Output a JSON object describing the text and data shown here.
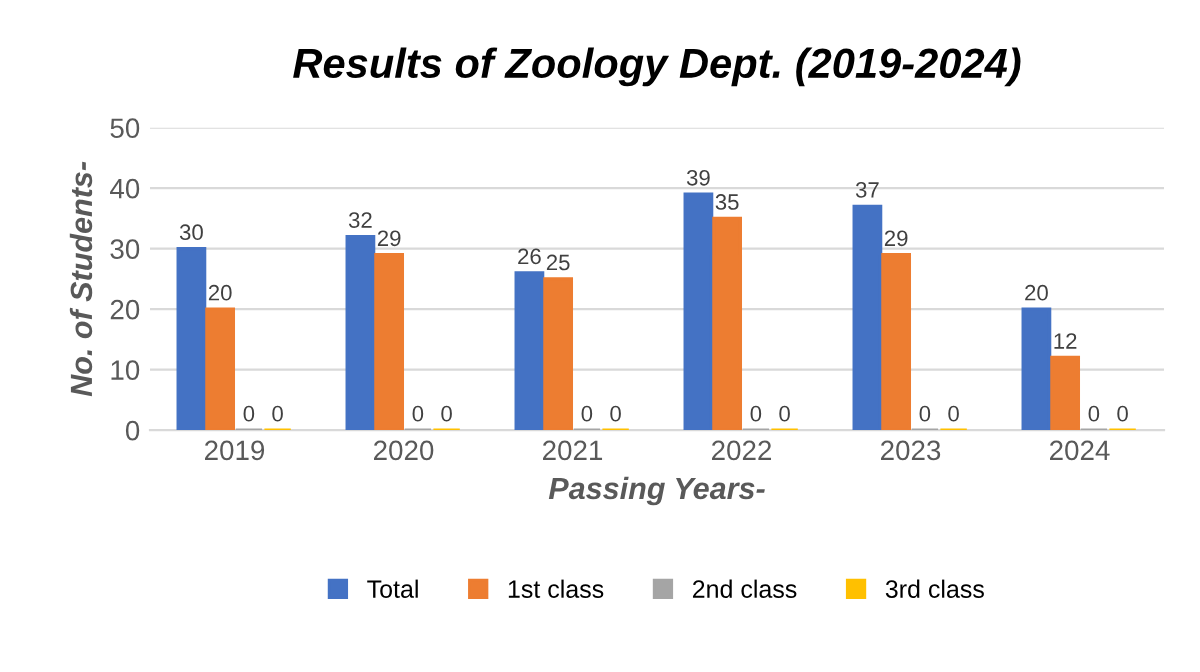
{
  "chart_data": {
    "type": "bar",
    "title": "Results of Zoology Dept. (2019-2024)",
    "xlabel": "Passing Years-",
    "ylabel": "No. of Students-",
    "categories": [
      "2019",
      "2020",
      "2021",
      "2022",
      "2023",
      "2024"
    ],
    "series": [
      {
        "name": "Total",
        "color": "#4472c4",
        "values": [
          30,
          32,
          26,
          39,
          37,
          20
        ]
      },
      {
        "name": "1st class",
        "color": "#ed7d31",
        "values": [
          20,
          29,
          25,
          35,
          29,
          12
        ]
      },
      {
        "name": "2nd class",
        "color": "#a5a5a5",
        "values": [
          0,
          0,
          0,
          0,
          0,
          0
        ]
      },
      {
        "name": "3rd class",
        "color": "#ffc000",
        "values": [
          0,
          0,
          0,
          0,
          0,
          0
        ]
      }
    ],
    "ylim": [
      0,
      50
    ],
    "yticks": [
      0,
      10,
      20,
      30,
      40,
      50
    ],
    "grid": "y",
    "legend": "bottom",
    "data_labels": true
  }
}
